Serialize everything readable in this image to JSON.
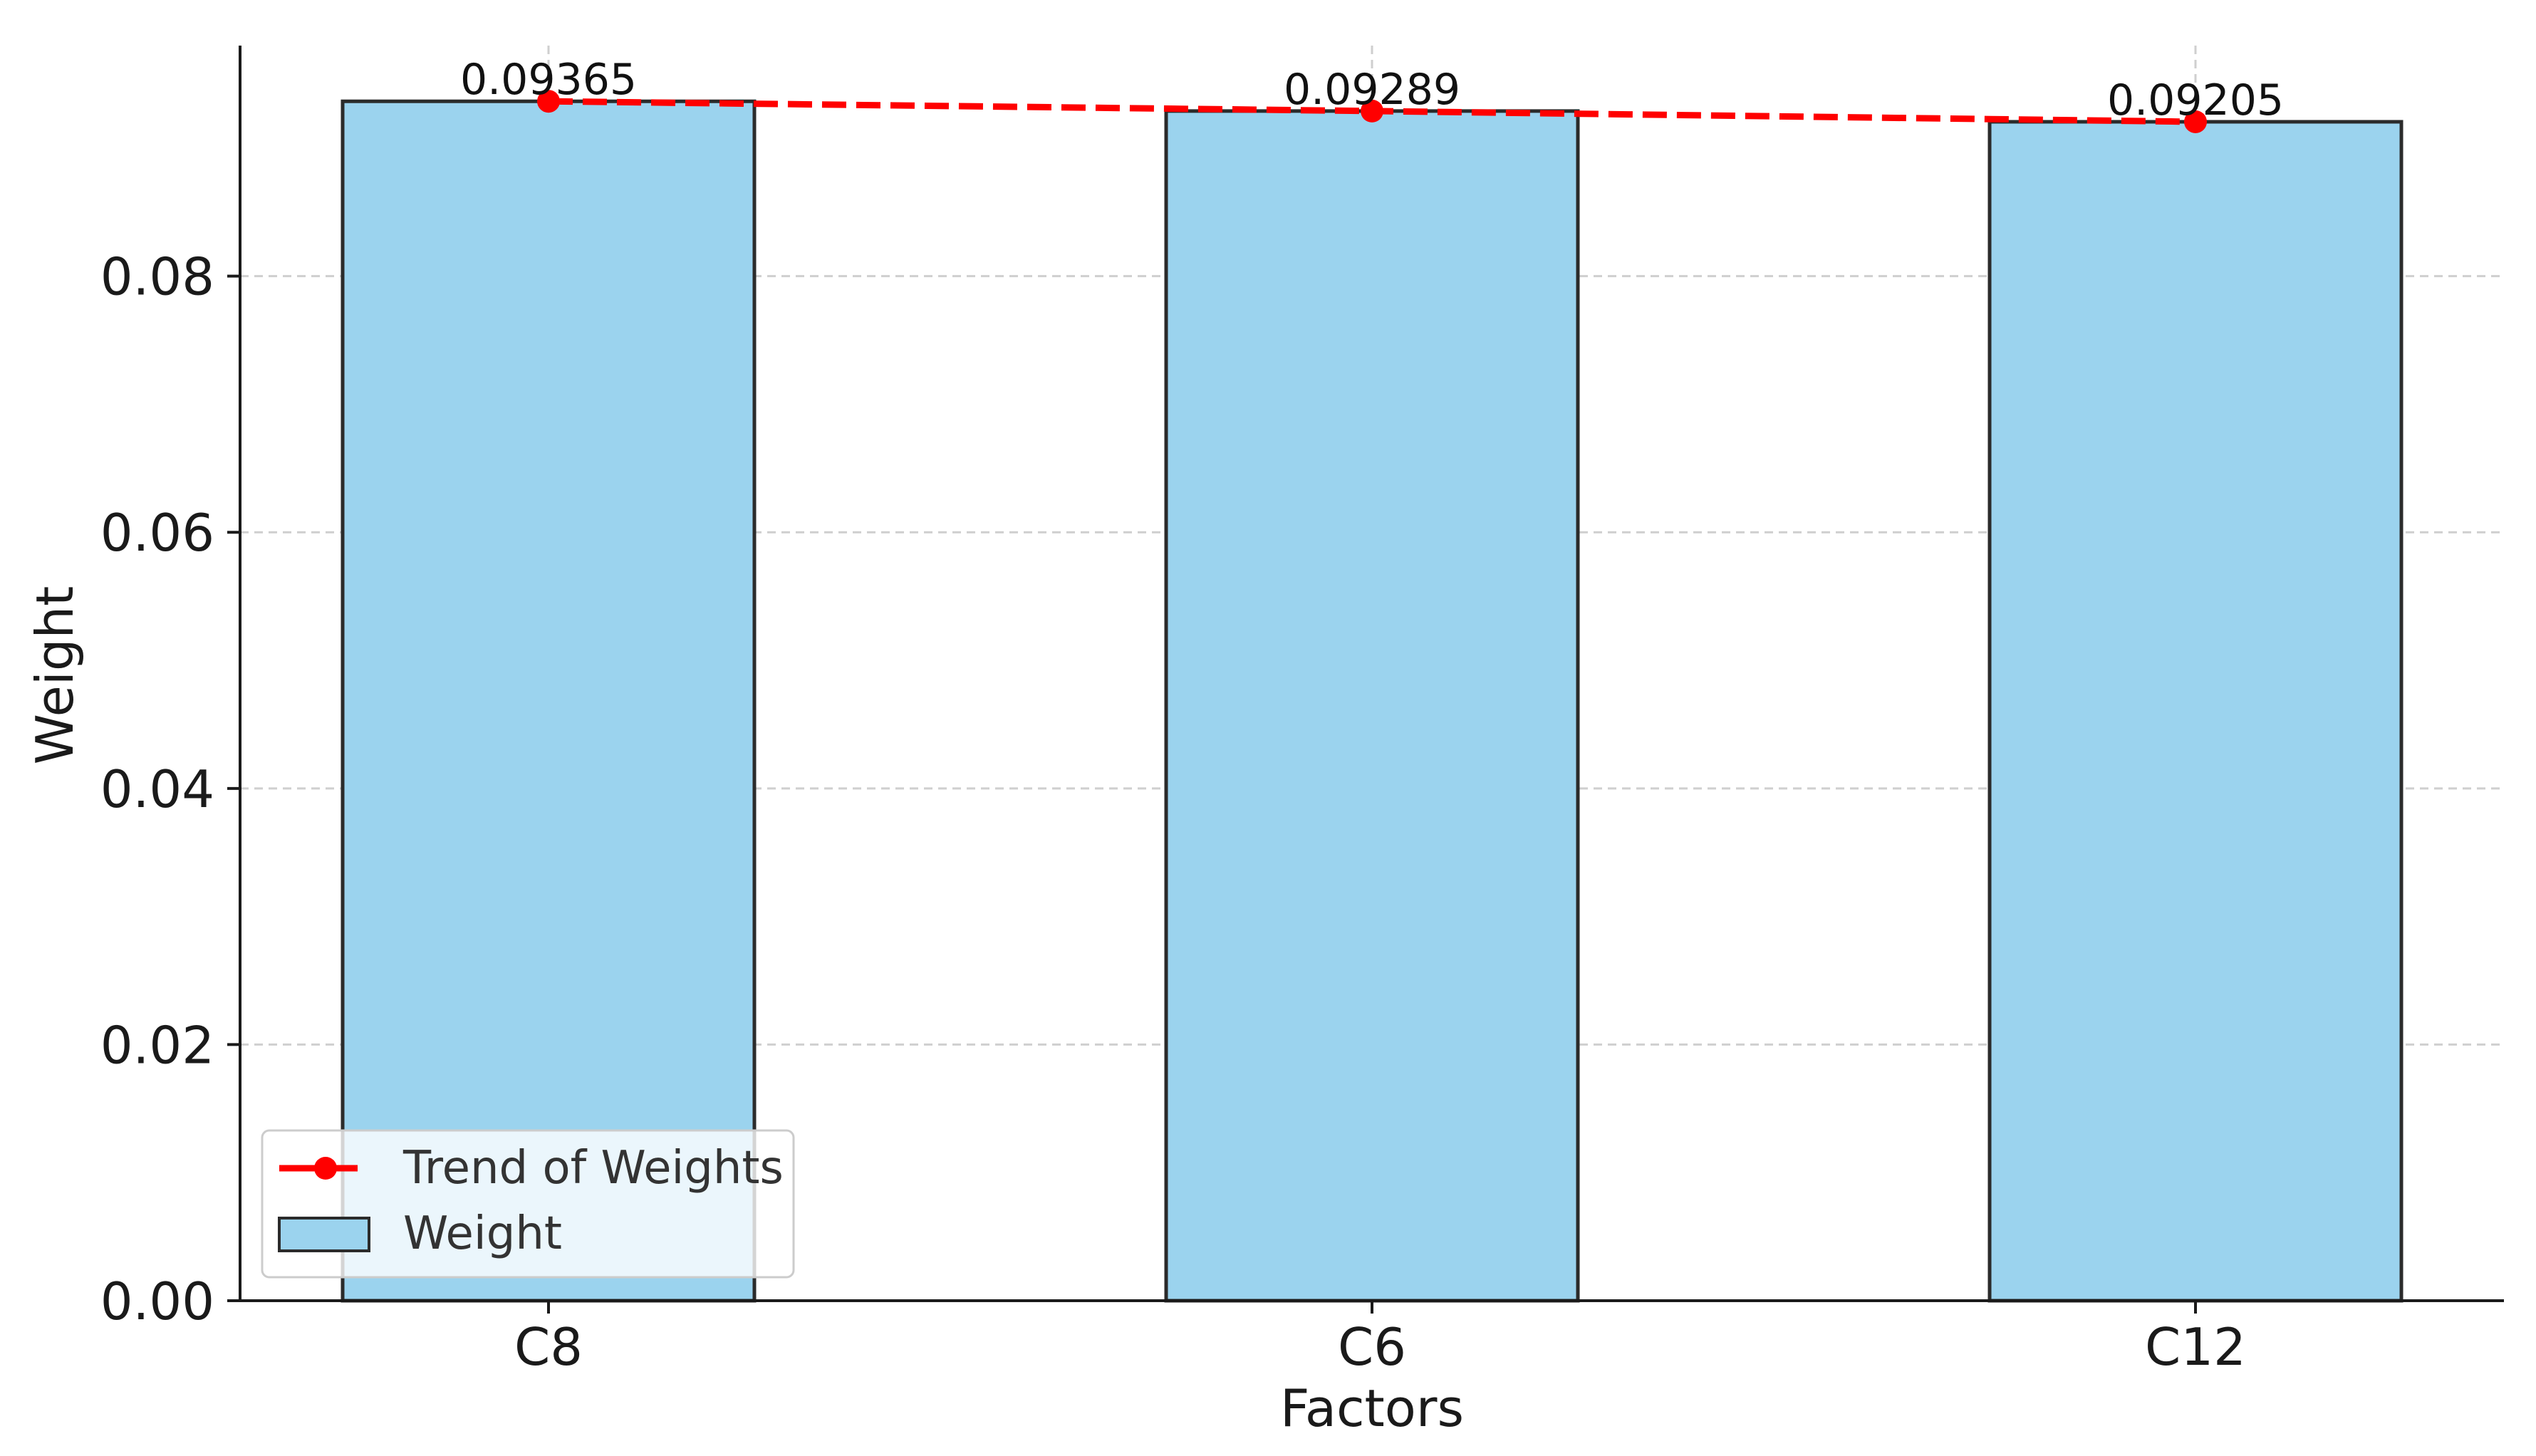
{
  "chart_data": {
    "type": "bar",
    "title": "",
    "xlabel": "Factors",
    "ylabel": "Weight",
    "categories": [
      "C8",
      "C6",
      "C12"
    ],
    "series": [
      {
        "name": "Weight",
        "kind": "bar",
        "values": [
          0.09365,
          0.09289,
          0.09205
        ],
        "color": "#9BD3EE",
        "edge_color": "#2b2b2b"
      },
      {
        "name": "Trend of Weights",
        "kind": "line",
        "style": "dashed",
        "marker": "circle",
        "values": [
          0.09365,
          0.09289,
          0.09205
        ],
        "color": "#FF0000"
      }
    ],
    "data_labels": [
      "0.09365",
      "0.09289",
      "0.09205"
    ],
    "y_ticks": [
      0.0,
      0.02,
      0.04,
      0.06,
      0.08
    ],
    "y_tick_labels": [
      "0.00",
      "0.02",
      "0.04",
      "0.06",
      "0.08"
    ],
    "ylim": [
      0,
      0.098
    ],
    "grid": true,
    "legend_position": "lower-left"
  }
}
